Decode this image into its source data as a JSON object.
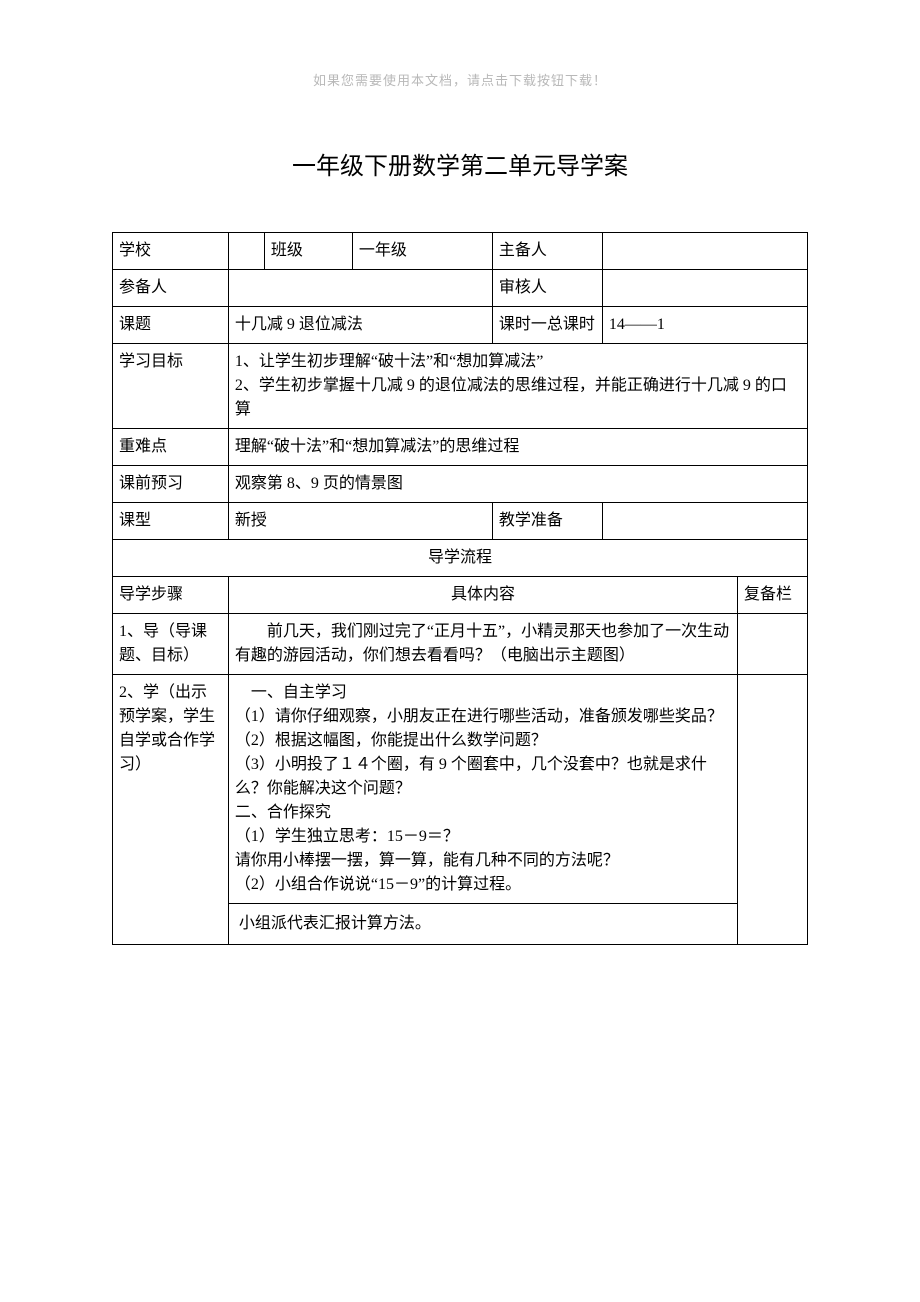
{
  "watermark": "如果您需要使用本文档，请点击下载按钮下载！",
  "title": "一年级下册数学第二单元导学案",
  "header": {
    "school_label": "学校",
    "class_label": "班级",
    "class_value": "一年级",
    "main_author_label": "主备人",
    "co_author_label": "参备人",
    "reviewer_label": "审核人",
    "topic_label": "课题",
    "topic_value": "十几减 9 退位减法",
    "period_label": "课时一总课时",
    "period_value": "14——1",
    "objective_label": "学习目标",
    "objective_value": "1、让学生初步理解“破十法”和“想加算减法”\n2、学生初步掌握十几减 9 的退位减法的思维过程，并能正确进行十几减 9 的口算",
    "keypoint_label": "重难点",
    "keypoint_value": "理解“破十法”和“想加算减法”的思维过程",
    "preview_label": "课前预习",
    "preview_value": "观察第 8、9 页的情景图",
    "type_label": "课型",
    "type_value": "新授",
    "prep_label": "教学准备"
  },
  "flow": {
    "process_header": "导学流程",
    "step_label": "导学步骤",
    "content_label": "具体内容",
    "fubei_label": "复备栏",
    "step1_label": "1、导（导课题、目标）",
    "step1_content": "前几天，我们刚过完了“正月十五”，小精灵那天也参加了一次生动有趣的游园活动，你们想去看看吗？（电脑出示主题图）",
    "step2_label": "2、学（出示预学案，学生自学或合作学习）",
    "step2_content": "一、自主学习\n（1）请你仔细观察，小朋友正在进行哪些活动，准备颁发哪些奖品？\n（2）根据这幅图，你能提出什么数学问题？\n（3）小明投了１４个圈，有 9 个圈套中，几个没套中？也就是求什么？你能解决这个问题？\n二、合作探究\n（1）学生独立思考：15－9＝？\n请你用小棒摆一摆，算一算，能有几种不同的方法呢？\n（2）小组合作说说“15－9”的计算过程。",
    "step2_content_extra": "小组派代表汇报计算方法。"
  },
  "colors": {
    "text": "#000000",
    "border": "#000000",
    "watermark": "#b8b8b8",
    "background": "#ffffff"
  },
  "typography": {
    "body_font": "SimSun",
    "title_fontsize": 24,
    "cell_fontsize": 16,
    "watermark_fontsize": 13
  }
}
